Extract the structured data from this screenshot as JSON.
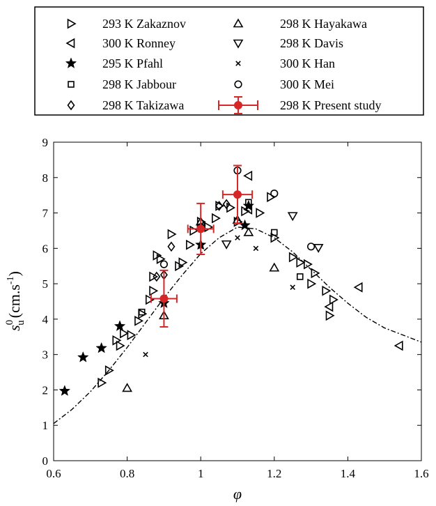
{
  "chart_data": {
    "type": "scatter",
    "title": "",
    "xlabel": "φ",
    "ylabel_main": "s",
    "ylabel_sup": "0",
    "ylabel_sub": "u",
    "ylabel_units_open": "(cm.s",
    "ylabel_units_exp": "-1",
    "ylabel_units_close": ")",
    "xlim": [
      0.6,
      1.6
    ],
    "ylim": [
      0,
      9
    ],
    "xticks": [
      "0.6",
      "0.8",
      "1",
      "1.2",
      "1.4",
      "1.6"
    ],
    "yticks": [
      "0",
      "1",
      "2",
      "3",
      "4",
      "5",
      "6",
      "7",
      "8",
      "9"
    ],
    "grid": false,
    "legend_position": "top-outside",
    "series": [
      {
        "name": "293 K Zakaznov",
        "marker": "triangle-right",
        "color": "#000000",
        "points": [
          [
            0.73,
            2.2
          ],
          [
            0.75,
            2.55
          ],
          [
            0.77,
            3.4
          ],
          [
            0.78,
            3.25
          ],
          [
            0.79,
            3.6
          ],
          [
            0.81,
            3.55
          ],
          [
            0.83,
            3.95
          ],
          [
            0.84,
            4.15
          ],
          [
            0.86,
            4.55
          ],
          [
            0.87,
            4.8
          ],
          [
            0.87,
            5.2
          ],
          [
            0.88,
            5.8
          ],
          [
            0.89,
            5.7
          ],
          [
            0.92,
            6.4
          ],
          [
            0.94,
            5.5
          ],
          [
            0.95,
            5.6
          ],
          [
            0.97,
            6.1
          ],
          [
            0.98,
            6.5
          ],
          [
            1.0,
            6.75
          ],
          [
            1.02,
            6.6
          ],
          [
            1.04,
            6.85
          ],
          [
            1.05,
            7.2
          ],
          [
            1.08,
            7.15
          ],
          [
            1.1,
            6.75
          ],
          [
            1.12,
            7.05
          ],
          [
            1.16,
            7.0
          ],
          [
            1.19,
            7.45
          ],
          [
            1.2,
            6.3
          ],
          [
            1.25,
            5.75
          ],
          [
            1.27,
            5.6
          ],
          [
            1.29,
            5.55
          ],
          [
            1.3,
            5.0
          ],
          [
            1.31,
            5.3
          ],
          [
            1.34,
            4.8
          ],
          [
            1.35,
            4.1
          ],
          [
            1.36,
            4.55
          ]
        ]
      },
      {
        "name": "300 K Ronney",
        "marker": "triangle-left",
        "color": "#000000",
        "points": [
          [
            1.13,
            8.05
          ],
          [
            1.13,
            7.1
          ],
          [
            1.43,
            4.9
          ],
          [
            1.54,
            3.25
          ],
          [
            1.35,
            4.35
          ]
        ]
      },
      {
        "name": "295 K Pfahl",
        "marker": "star",
        "color": "#000000",
        "points": [
          [
            0.63,
            1.97
          ],
          [
            0.68,
            2.92
          ],
          [
            0.73,
            3.18
          ],
          [
            0.78,
            3.8
          ],
          [
            0.9,
            4.45
          ],
          [
            1.0,
            6.1
          ],
          [
            1.12,
            6.65
          ],
          [
            1.13,
            7.2
          ]
        ]
      },
      {
        "name": "298 K Jabbour",
        "marker": "square",
        "color": "#000000",
        "points": [
          [
            0.84,
            4.2
          ],
          [
            1.13,
            7.3
          ],
          [
            1.2,
            6.45
          ],
          [
            1.27,
            5.2
          ]
        ]
      },
      {
        "name": "298 K Takizawa",
        "marker": "diamond",
        "color": "#000000",
        "points": [
          [
            0.88,
            5.2
          ],
          [
            0.9,
            5.25
          ],
          [
            0.92,
            6.05
          ],
          [
            1.0,
            6.6
          ],
          [
            1.05,
            7.2
          ],
          [
            1.07,
            7.25
          ]
        ]
      },
      {
        "name": "298 K Hayakawa",
        "marker": "triangle-up",
        "color": "#000000",
        "points": [
          [
            0.8,
            2.05
          ],
          [
            0.9,
            4.1
          ],
          [
            1.0,
            6.75
          ],
          [
            1.1,
            6.8
          ],
          [
            1.13,
            6.45
          ],
          [
            1.2,
            5.45
          ]
        ]
      },
      {
        "name": "298 K Davis",
        "marker": "triangle-down",
        "color": "#000000",
        "points": [
          [
            1.07,
            6.12
          ],
          [
            1.25,
            6.92
          ],
          [
            1.32,
            6.02
          ]
        ]
      },
      {
        "name": "300 K Han",
        "marker": "x",
        "color": "#000000",
        "points": [
          [
            0.85,
            3.0
          ],
          [
            1.0,
            6.05
          ],
          [
            1.1,
            6.3
          ],
          [
            1.15,
            6.0
          ],
          [
            1.25,
            4.9
          ]
        ]
      },
      {
        "name": "300 K Mei",
        "marker": "circle",
        "color": "#000000",
        "points": [
          [
            0.9,
            5.55
          ],
          [
            1.0,
            6.6
          ],
          [
            1.1,
            8.2
          ],
          [
            1.2,
            7.55
          ],
          [
            1.3,
            6.05
          ]
        ]
      },
      {
        "name": "298 K Present study",
        "marker": "filled-circle",
        "color": "#d62728",
        "points": [
          [
            0.9,
            4.58
          ],
          [
            1.0,
            6.55
          ],
          [
            1.1,
            7.52
          ]
        ],
        "xerr": [
          0.035,
          0.035,
          0.04
        ],
        "yerr": [
          0.8,
          0.72,
          0.82
        ]
      }
    ],
    "curve": {
      "style": "dash-dot",
      "color": "#000000",
      "points": [
        [
          0.6,
          1.05
        ],
        [
          0.65,
          1.45
        ],
        [
          0.7,
          1.95
        ],
        [
          0.75,
          2.55
        ],
        [
          0.8,
          3.2
        ],
        [
          0.85,
          3.9
        ],
        [
          0.9,
          4.6
        ],
        [
          0.95,
          5.25
        ],
        [
          1.0,
          5.85
        ],
        [
          1.05,
          6.3
        ],
        [
          1.1,
          6.6
        ],
        [
          1.15,
          6.55
        ],
        [
          1.2,
          6.3
        ],
        [
          1.25,
          5.9
        ],
        [
          1.3,
          5.4
        ],
        [
          1.35,
          4.9
        ],
        [
          1.4,
          4.45
        ],
        [
          1.45,
          4.05
        ],
        [
          1.5,
          3.75
        ],
        [
          1.55,
          3.55
        ],
        [
          1.6,
          3.35
        ]
      ]
    }
  }
}
